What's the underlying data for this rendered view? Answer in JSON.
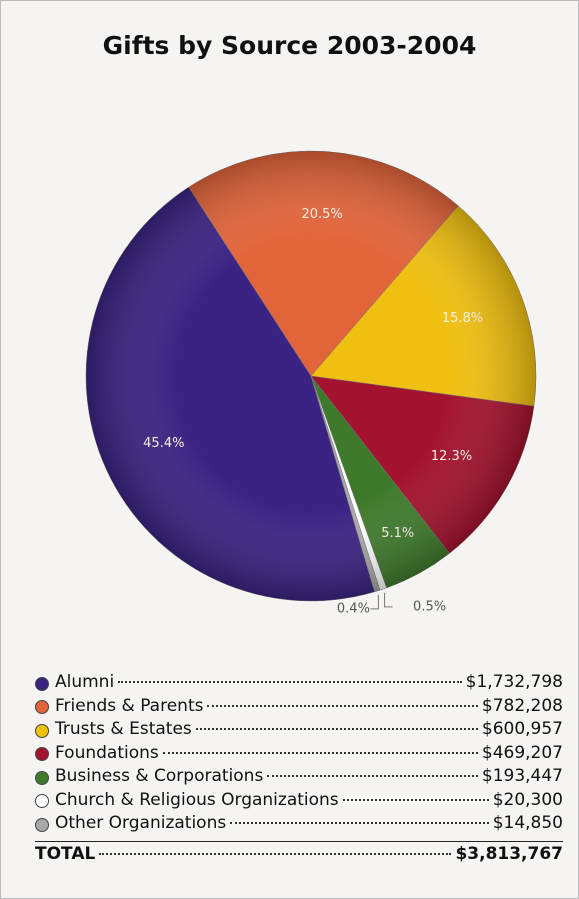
{
  "chart_data": {
    "type": "pie",
    "title": "Gifts by Source 2003-2004",
    "categories": [
      "Alumni",
      "Friends & Parents",
      "Trusts & Estates",
      "Foundations",
      "Business & Corporations",
      "Church & Religious Organizations",
      "Other Organizations"
    ],
    "values": [
      45.4,
      20.5,
      15.8,
      12.3,
      5.1,
      0.5,
      0.4
    ],
    "value_labels": [
      "45.4%",
      "20.5%",
      "15.8%",
      "12.3%",
      "5.1%",
      "0.5%",
      "0.4%"
    ],
    "colors": [
      "#3b2383",
      "#e2643a",
      "#f0c010",
      "#a3122e",
      "#3f7a2c",
      "#ffffff",
      "#a8a8a8"
    ],
    "amounts": [
      "$1,732,798",
      "$782,208",
      "$600,957",
      "$469,207",
      "$193,447",
      "$20,300",
      "$14,850"
    ],
    "total_label": "TOTAL",
    "total_amount": "$3,813,767"
  }
}
